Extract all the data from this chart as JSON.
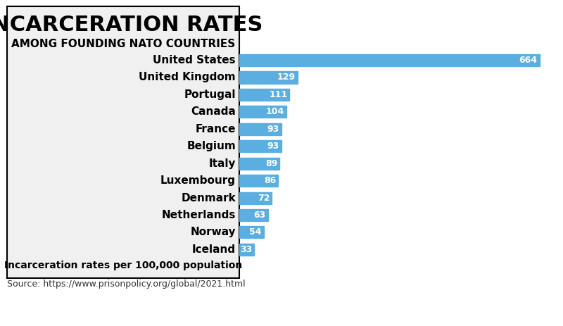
{
  "title": "INCARCERATION RATES",
  "subtitle": "AMONG FOUNDING NATO COUNTRIES",
  "caption": "Incarceration rates per 100,000 population",
  "source": "Source: https://www.prisonpolicy.org/global/2021.html",
  "countries": [
    "United States",
    "United Kingdom",
    "Portugal",
    "Canada",
    "France",
    "Belgium",
    "Italy",
    "Luxembourg",
    "Denmark",
    "Netherlands",
    "Norway",
    "Iceland"
  ],
  "values": [
    664,
    129,
    111,
    104,
    93,
    93,
    89,
    86,
    72,
    63,
    54,
    33
  ],
  "bar_color": "#5aafe0",
  "label_color": "#ffffff",
  "title_color": "#000000",
  "background_color": "#f0f0f0",
  "outer_background": "#ffffff",
  "box_edge_color": "#000000",
  "title_fontsize": 22,
  "subtitle_fontsize": 11,
  "country_fontsize": 11,
  "value_fontsize": 9,
  "caption_fontsize": 10,
  "source_fontsize": 9,
  "xlim": [
    0,
    700
  ]
}
